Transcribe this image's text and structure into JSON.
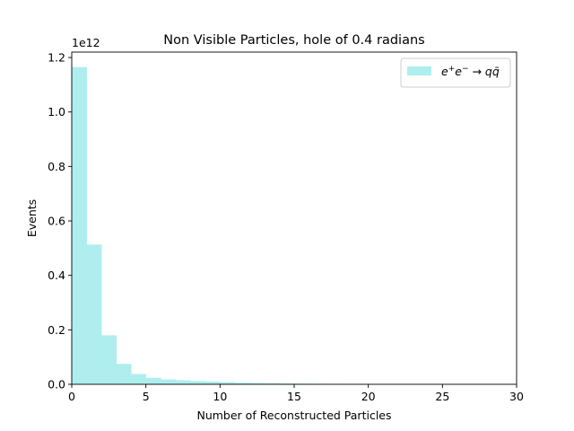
{
  "chart_data": {
    "type": "bar",
    "title": "Non Visible Particles, hole of 0.4 radians",
    "xlabel": "Number of Reconstructed Particles",
    "ylabel": "Events",
    "y_offset_label": "1e12",
    "x_ticks": [
      "0",
      "5",
      "10",
      "15",
      "20",
      "25",
      "30"
    ],
    "y_ticks": [
      "0.0",
      "0.2",
      "0.4",
      "0.6",
      "0.8",
      "1.0",
      "1.2"
    ],
    "xlim": [
      0,
      30
    ],
    "ylim": [
      0,
      1.22
    ],
    "y_unit_scale": "1e12",
    "bin_edges": [
      0,
      1,
      2,
      3,
      4,
      5,
      6,
      7,
      8,
      9,
      10,
      11,
      12,
      13,
      14,
      15,
      16,
      17,
      18,
      19,
      20,
      21,
      22,
      23,
      24,
      25,
      26,
      27,
      28,
      29,
      30
    ],
    "values": [
      1.165,
      0.513,
      0.18,
      0.075,
      0.038,
      0.024,
      0.018,
      0.015,
      0.012,
      0.01,
      0.008,
      0.006,
      0.005,
      0.004,
      0.003,
      0.0025,
      0.002,
      0.0015,
      0.001,
      0.001,
      0.0008,
      0.0006,
      0.0005,
      0.0004,
      0.0003,
      0.0002,
      0.0002,
      0.0001,
      0.0001,
      0.0001
    ],
    "series": [
      {
        "name": "e+e- → qq̄",
        "color": "#afeeee"
      }
    ],
    "legend_position": "upper-right",
    "grid": false
  },
  "legend": {
    "label_e": "e",
    "label_plus": "+",
    "label_e2": "e",
    "label_minus": "−",
    "label_arrow": " → q",
    "label_qbar": "q̄"
  }
}
